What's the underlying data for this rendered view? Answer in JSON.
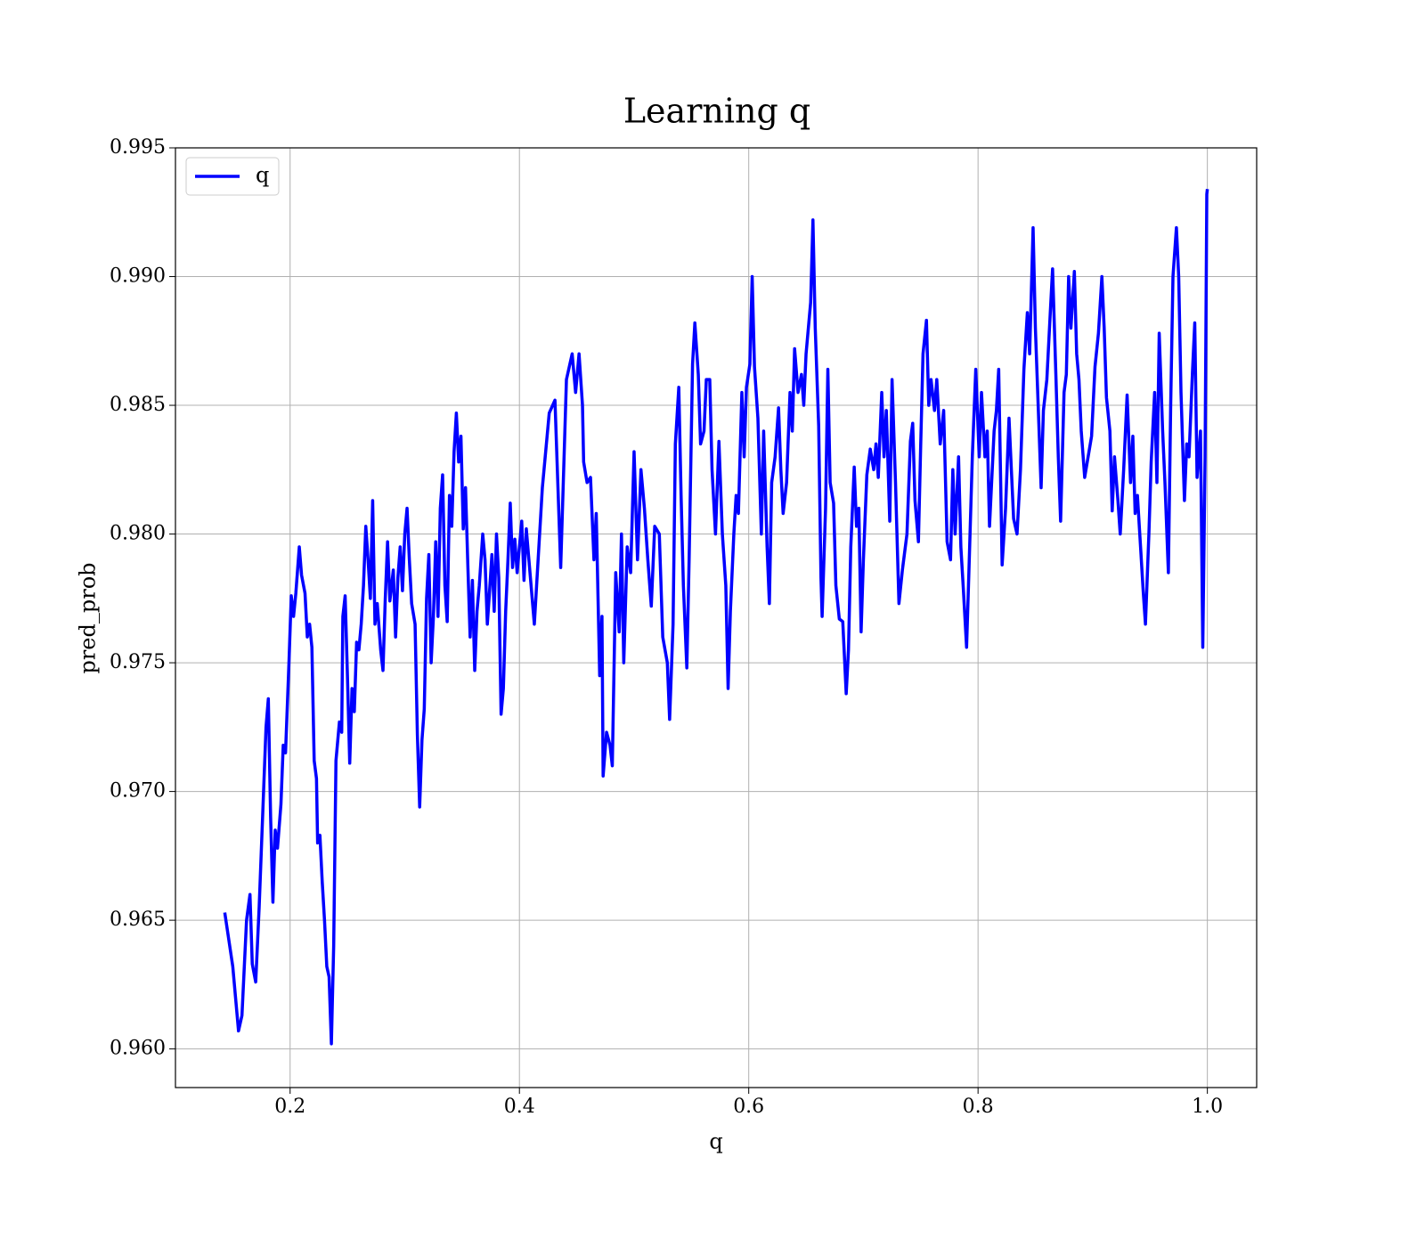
{
  "chart_data": {
    "type": "line",
    "title": "Learning q",
    "xlabel": "q",
    "ylabel": "pred_prob",
    "xlim": [
      0.1,
      1.043
    ],
    "ylim": [
      0.9585,
      0.995
    ],
    "xticks": [
      0.2,
      0.4,
      0.6,
      0.8,
      {
        "value": 1,
        "label": "1.0"
      }
    ],
    "yticks": [
      {
        "value": 0.96,
        "label": "0.960"
      },
      0.965,
      {
        "value": 0.97,
        "label": "0.970"
      },
      0.975,
      {
        "value": 0.98,
        "label": "0.980"
      },
      0.985,
      {
        "value": 0.99,
        "label": "0.990"
      },
      0.995
    ],
    "grid": true,
    "legend": "upper left",
    "series": [
      {
        "name": "q",
        "color": "#0000ff",
        "x": [
          0.143,
          0.15,
          0.155,
          0.158,
          0.162,
          0.165,
          0.167,
          0.17,
          0.173,
          0.176,
          0.179,
          0.181,
          0.183,
          0.185,
          0.187,
          0.189,
          0.192,
          0.194,
          0.196,
          0.199,
          0.201,
          0.203,
          0.205,
          0.208,
          0.21,
          0.213,
          0.215,
          0.217,
          0.219,
          0.221,
          0.223,
          0.224,
          0.226,
          0.228,
          0.23,
          0.232,
          0.234,
          0.236,
          0.238,
          0.24,
          0.243,
          0.245,
          0.246,
          0.248,
          0.25,
          0.252,
          0.254,
          0.256,
          0.258,
          0.26,
          0.262,
          0.264,
          0.266,
          0.268,
          0.27,
          0.272,
          0.274,
          0.276,
          0.279,
          0.281,
          0.283,
          0.285,
          0.287,
          0.29,
          0.292,
          0.294,
          0.296,
          0.298,
          0.3,
          0.302,
          0.304,
          0.306,
          0.309,
          0.311,
          0.313,
          0.315,
          0.317,
          0.319,
          0.321,
          0.323,
          0.325,
          0.327,
          0.329,
          0.331,
          0.333,
          0.335,
          0.337,
          0.339,
          0.341,
          0.343,
          0.345,
          0.347,
          0.349,
          0.351,
          0.353,
          0.355,
          0.357,
          0.359,
          0.361,
          0.363,
          0.365,
          0.368,
          0.37,
          0.372,
          0.374,
          0.376,
          0.378,
          0.38,
          0.382,
          0.384,
          0.386,
          0.388,
          0.39,
          0.392,
          0.394,
          0.396,
          0.398,
          0.4,
          0.402,
          0.404,
          0.406,
          0.413,
          0.42,
          0.426,
          0.431,
          0.436,
          0.441,
          0.446,
          0.449,
          0.452,
          0.455,
          0.456,
          0.459,
          0.462,
          0.465,
          0.467,
          0.47,
          0.472,
          0.473,
          0.476,
          0.479,
          0.481,
          0.484,
          0.487,
          0.489,
          0.491,
          0.494,
          0.497,
          0.5,
          0.503,
          0.506,
          0.509,
          0.512,
          0.515,
          0.518,
          0.522,
          0.525,
          0.529,
          0.531,
          0.534,
          0.536,
          0.539,
          0.541,
          0.543,
          0.546,
          0.548,
          0.551,
          0.553,
          0.556,
          0.558,
          0.561,
          0.563,
          0.566,
          0.568,
          0.571,
          0.574,
          0.577,
          0.58,
          0.582,
          0.584,
          0.587,
          0.589,
          0.591,
          0.594,
          0.596,
          0.598,
          0.601,
          0.603,
          0.605,
          0.608,
          0.611,
          0.613,
          0.616,
          0.618,
          0.62,
          0.623,
          0.626,
          0.628,
          0.63,
          0.633,
          0.636,
          0.638,
          0.64,
          0.643,
          0.646,
          0.648,
          0.65,
          0.654,
          0.656,
          0.658,
          0.661,
          0.663,
          0.664,
          0.667,
          0.669,
          0.671,
          0.674,
          0.676,
          0.679,
          0.682,
          0.685,
          0.687,
          0.689,
          0.692,
          0.694,
          0.696,
          0.698,
          0.7,
          0.703,
          0.706,
          0.709,
          0.711,
          0.713,
          0.716,
          0.718,
          0.72,
          0.723,
          0.725,
          0.728,
          0.731,
          0.734,
          0.738,
          0.741,
          0.743,
          0.745,
          0.748,
          0.75,
          0.752,
          0.755,
          0.757,
          0.759,
          0.762,
          0.764,
          0.767,
          0.77,
          0.773,
          0.776,
          0.778,
          0.78,
          0.783,
          0.785,
          0.787,
          0.79,
          0.792,
          0.795,
          0.798,
          0.801,
          0.803,
          0.806,
          0.808,
          0.81,
          0.814,
          0.816,
          0.818,
          0.821,
          0.824,
          0.827,
          0.831,
          0.834,
          0.837,
          0.84,
          0.843,
          0.845,
          0.848,
          0.85,
          0.853,
          0.855,
          0.857,
          0.86,
          0.863,
          0.865,
          0.868,
          0.87,
          0.872,
          0.875,
          0.877,
          0.879,
          0.881,
          0.884,
          0.886,
          0.888,
          0.89,
          0.893,
          0.896,
          0.899,
          0.902,
          0.905,
          0.908,
          0.91,
          0.912,
          0.915,
          0.917,
          0.919,
          0.922,
          0.924,
          0.927,
          0.93,
          0.933,
          0.935,
          0.937,
          0.939,
          0.942,
          0.944,
          0.946,
          0.949,
          0.951,
          0.954,
          0.956,
          0.958,
          0.961,
          0.963,
          0.966,
          0.968,
          0.97,
          0.973,
          0.975,
          0.977,
          0.98,
          0.982,
          0.984,
          0.987,
          0.989,
          0.991,
          0.994,
          0.996,
          0.998,
          0.9995,
          1.0
        ],
        "values": [
          0.9653,
          0.9632,
          0.9607,
          0.9613,
          0.965,
          0.966,
          0.9633,
          0.9626,
          0.9655,
          0.969,
          0.9725,
          0.9736,
          0.969,
          0.9657,
          0.9685,
          0.9678,
          0.9695,
          0.9718,
          0.9715,
          0.975,
          0.9776,
          0.9768,
          0.9777,
          0.9795,
          0.9784,
          0.9777,
          0.976,
          0.9765,
          0.9756,
          0.9712,
          0.9705,
          0.968,
          0.9683,
          0.9665,
          0.965,
          0.9632,
          0.9628,
          0.9602,
          0.964,
          0.9712,
          0.9727,
          0.9723,
          0.9768,
          0.9776,
          0.9745,
          0.9711,
          0.974,
          0.9731,
          0.9758,
          0.9755,
          0.9765,
          0.978,
          0.9803,
          0.979,
          0.9775,
          0.9813,
          0.9765,
          0.9773,
          0.9755,
          0.9747,
          0.9775,
          0.9797,
          0.9774,
          0.9786,
          0.976,
          0.9783,
          0.9795,
          0.9778,
          0.98,
          0.981,
          0.979,
          0.9773,
          0.9765,
          0.9722,
          0.9694,
          0.972,
          0.9732,
          0.9775,
          0.9792,
          0.975,
          0.9768,
          0.9797,
          0.9768,
          0.981,
          0.9823,
          0.978,
          0.9766,
          0.9815,
          0.9803,
          0.9832,
          0.9847,
          0.9828,
          0.9838,
          0.9802,
          0.9818,
          0.9788,
          0.976,
          0.9782,
          0.9747,
          0.977,
          0.978,
          0.98,
          0.979,
          0.9765,
          0.9778,
          0.9792,
          0.977,
          0.98,
          0.9783,
          0.973,
          0.974,
          0.977,
          0.979,
          0.9812,
          0.9787,
          0.9798,
          0.9785,
          0.9795,
          0.9805,
          0.9782,
          0.9802,
          0.9765,
          0.9818,
          0.9847,
          0.9852,
          0.9787,
          0.986,
          0.987,
          0.9855,
          0.987,
          0.985,
          0.9828,
          0.982,
          0.9822,
          0.979,
          0.9808,
          0.9745,
          0.9768,
          0.9706,
          0.9723,
          0.9718,
          0.971,
          0.9785,
          0.9762,
          0.98,
          0.975,
          0.9795,
          0.9785,
          0.9832,
          0.979,
          0.9825,
          0.981,
          0.979,
          0.9772,
          0.9803,
          0.98,
          0.976,
          0.975,
          0.9728,
          0.9765,
          0.9835,
          0.9857,
          0.9815,
          0.978,
          0.9748,
          0.979,
          0.9866,
          0.9882,
          0.9862,
          0.9835,
          0.984,
          0.986,
          0.986,
          0.9825,
          0.98,
          0.9836,
          0.98,
          0.978,
          0.974,
          0.977,
          0.98,
          0.9815,
          0.9808,
          0.9855,
          0.983,
          0.9857,
          0.9866,
          0.99,
          0.9865,
          0.9845,
          0.98,
          0.984,
          0.9795,
          0.9773,
          0.982,
          0.983,
          0.9849,
          0.9825,
          0.9808,
          0.982,
          0.9855,
          0.984,
          0.9872,
          0.9855,
          0.9862,
          0.985,
          0.987,
          0.989,
          0.9922,
          0.988,
          0.9842,
          0.9783,
          0.9768,
          0.981,
          0.9864,
          0.982,
          0.9812,
          0.978,
          0.9767,
          0.9766,
          0.9738,
          0.9755,
          0.9795,
          0.9826,
          0.9803,
          0.981,
          0.9762,
          0.979,
          0.9823,
          0.9833,
          0.9825,
          0.9835,
          0.9822,
          0.9855,
          0.983,
          0.9848,
          0.9805,
          0.986,
          0.982,
          0.9773,
          0.9786,
          0.98,
          0.9836,
          0.9843,
          0.9813,
          0.9797,
          0.9835,
          0.987,
          0.9883,
          0.985,
          0.986,
          0.9848,
          0.986,
          0.9835,
          0.9848,
          0.9797,
          0.979,
          0.9825,
          0.98,
          0.983,
          0.9795,
          0.978,
          0.9756,
          0.9785,
          0.983,
          0.9864,
          0.983,
          0.9855,
          0.983,
          0.984,
          0.9803,
          0.984,
          0.9848,
          0.9864,
          0.9788,
          0.981,
          0.9845,
          0.9806,
          0.98,
          0.9825,
          0.9864,
          0.9886,
          0.987,
          0.9919,
          0.988,
          0.9843,
          0.9818,
          0.9848,
          0.986,
          0.9886,
          0.9903,
          0.986,
          0.983,
          0.9805,
          0.9855,
          0.9862,
          0.99,
          0.988,
          0.9902,
          0.987,
          0.986,
          0.984,
          0.9822,
          0.983,
          0.9838,
          0.9865,
          0.9878,
          0.99,
          0.988,
          0.9853,
          0.984,
          0.9809,
          0.983,
          0.9813,
          0.98,
          0.9825,
          0.9854,
          0.982,
          0.9838,
          0.9808,
          0.9815,
          0.9793,
          0.9778,
          0.9765,
          0.98,
          0.9828,
          0.9855,
          0.982,
          0.9878,
          0.984,
          0.982,
          0.9785,
          0.985,
          0.99,
          0.9919,
          0.99,
          0.9855,
          0.9813,
          0.9835,
          0.983,
          0.9863,
          0.9882,
          0.9822,
          0.984,
          0.9756,
          0.983,
          0.9932,
          0.9934
        ]
      }
    ]
  }
}
